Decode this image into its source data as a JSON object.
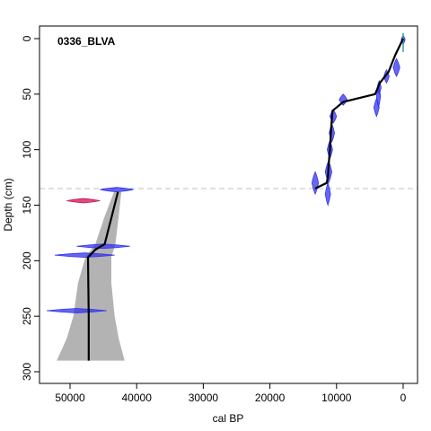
{
  "chart_data": {
    "type": "line",
    "title": "0336_BLVA",
    "xlabel": "cal BP",
    "ylabel": "Depth (cm)",
    "xlim": [
      55000,
      -2000
    ],
    "ylim": [
      0,
      300
    ],
    "x_ticks": [
      50000,
      40000,
      30000,
      20000,
      10000,
      0
    ],
    "x_tick_labels": [
      "50000",
      "40000",
      "30000",
      "20000",
      "10000",
      "0"
    ],
    "y_ticks": [
      0,
      50,
      100,
      150,
      200,
      250,
      300
    ],
    "y_tick_labels": [
      "0",
      "50",
      "100",
      "150",
      "200",
      "250",
      "300"
    ],
    "hiatus_depth": 135,
    "colors": {
      "model": "#000000",
      "envelope": "#b3b3b3",
      "date": "#3333ee",
      "outlier": "#cc1155",
      "surface": "#33a0a0",
      "hiatus": "#c0c0c0"
    },
    "series": [
      {
        "type": "line",
        "x": [
          0,
          1200,
          2200,
          3500,
          4200,
          9000,
          10000,
          10600,
          10800,
          11000,
          11200,
          11300,
          11500,
          13200
        ],
        "y": [
          0,
          15,
          30,
          40,
          50,
          57,
          62,
          65,
          80,
          100,
          115,
          125,
          130,
          135
        ]
      },
      {
        "type": "line",
        "x": [
          42800,
          44800,
          46200,
          47300,
          47200,
          47200
        ],
        "y": [
          138,
          185,
          190,
          197,
          250,
          290
        ]
      }
    ],
    "envelope_lower_x": [
      43400,
      44800,
      46200,
      47700,
      48800,
      49500,
      50500,
      52000
    ],
    "envelope_upper_x": [
      42300,
      42700,
      43200,
      43800,
      43800,
      43300,
      42700,
      41800
    ],
    "envelope_y": [
      138,
      160,
      185,
      197,
      220,
      250,
      270,
      290
    ],
    "dates": [
      {
        "x": 0,
        "y": 1,
        "spread": 300,
        "half_height": 4
      },
      {
        "x": 1000,
        "y": 26,
        "spread": 500,
        "half_height": 8
      },
      {
        "x": 2500,
        "y": 34,
        "spread": 400,
        "half_height": 6
      },
      {
        "x": 3600,
        "y": 44,
        "spread": 300,
        "half_height": 6
      },
      {
        "x": 3700,
        "y": 52,
        "spread": 300,
        "half_height": 10
      },
      {
        "x": 4000,
        "y": 62,
        "spread": 400,
        "half_height": 8
      },
      {
        "x": 9000,
        "y": 55,
        "spread": 600,
        "half_height": 5
      },
      {
        "x": 10500,
        "y": 70,
        "spread": 500,
        "half_height": 6
      },
      {
        "x": 10700,
        "y": 85,
        "spread": 400,
        "half_height": 8
      },
      {
        "x": 11000,
        "y": 100,
        "spread": 400,
        "half_height": 8
      },
      {
        "x": 11200,
        "y": 120,
        "spread": 500,
        "half_height": 10
      },
      {
        "x": 11300,
        "y": 140,
        "spread": 400,
        "half_height": 10
      },
      {
        "x": 13200,
        "y": 130,
        "spread": 500,
        "half_height": 10
      },
      {
        "x": 43000,
        "y": 136,
        "spread": 2500,
        "half_height": 2
      },
      {
        "x": 45000,
        "y": 187,
        "spread": 4000,
        "half_height": 2
      },
      {
        "x": 47800,
        "y": 195,
        "spread": 4500,
        "half_height": 2
      },
      {
        "x": 49000,
        "y": 245,
        "spread": 4500,
        "half_height": 2
      }
    ],
    "outliers": [
      {
        "x": 48000,
        "y": 146,
        "spread": 2500,
        "half_height": 2
      }
    ]
  }
}
